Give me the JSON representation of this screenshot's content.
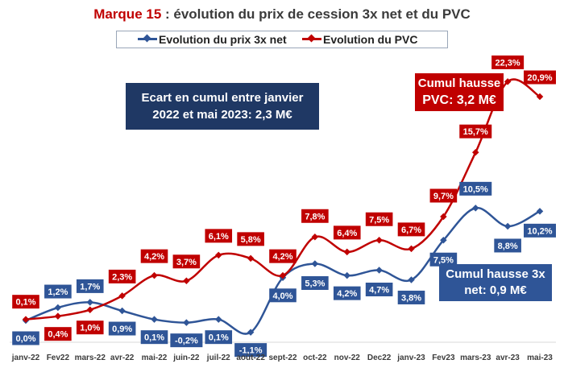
{
  "title": {
    "brand": "Marque 15",
    "rest": " : évolution du prix de cession 3x net et du PVC"
  },
  "boxes": {
    "ecart_line1": "Ecart en cumul entre janvier",
    "ecart_line2": "2022 et mai 2023: 2,3 M€",
    "pvc_line1": "Cumul hausse",
    "pvc_line2": "PVC: 3,2 M€",
    "net_line1": "Cumul hausse 3x",
    "net_line2": "net: 0,9 M€"
  },
  "chart_data": {
    "type": "line",
    "title": "Marque 15 : évolution du prix de cession 3x net et du PVC",
    "categories": [
      "janv-22",
      "Fev22",
      "mars-22",
      "avr-22",
      "mai-22",
      "juin-22",
      "juil-22",
      "août-22",
      "sept-22",
      "oct-22",
      "nov-22",
      "Dec22",
      "janv-23",
      "Fev23",
      "mars-23",
      "avr-23",
      "mai-23"
    ],
    "series": [
      {
        "name": "Evolution du prix 3x net",
        "color": "#2f5597",
        "values": [
          0.0,
          1.2,
          1.7,
          0.9,
          0.1,
          -0.2,
          0.1,
          -1.1,
          4.0,
          5.3,
          4.2,
          4.7,
          3.8,
          7.5,
          10.5,
          8.8,
          10.2
        ],
        "labels": [
          "0,0%",
          "1,2%",
          "1,7%",
          "0,9%",
          "0,1%",
          "-0,2%",
          "0,1%",
          "-1,1%",
          "4,0%",
          "5,3%",
          "4,2%",
          "4,7%",
          "3,8%",
          "7,5%",
          "10,5%",
          "8,8%",
          "10,2%"
        ]
      },
      {
        "name": "Evolution du PVC",
        "color": "#c00000",
        "values": [
          0.1,
          0.4,
          1.0,
          2.3,
          4.2,
          3.7,
          6.1,
          5.8,
          4.2,
          7.8,
          6.4,
          7.5,
          6.7,
          9.7,
          15.7,
          22.3,
          20.9
        ],
        "labels": [
          "0,1%",
          "0,4%",
          "1,0%",
          "2,3%",
          "4,2%",
          "3,7%",
          "6,1%",
          "5,8%",
          "4,2%",
          "7,8%",
          "6,4%",
          "7,5%",
          "6,7%",
          "9,7%",
          "15,7%",
          "22,3%",
          "20,9%"
        ]
      }
    ],
    "ylim": [
      -3,
      24
    ],
    "grid": false,
    "legend": "top"
  }
}
